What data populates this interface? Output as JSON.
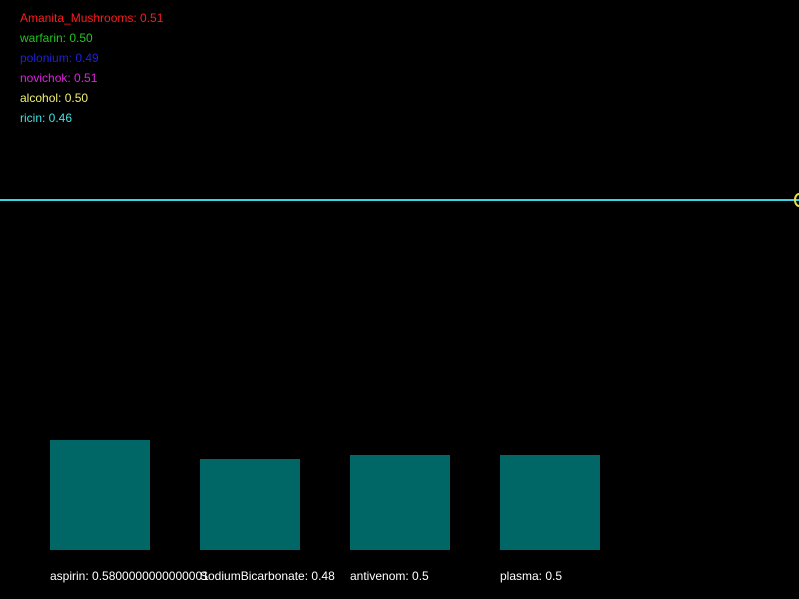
{
  "legend": {
    "items": [
      {
        "label": "Amanita_Mushrooms: 0.51",
        "color": "#ff1a1a"
      },
      {
        "label": "warfarin: 0.50",
        "color": "#22c322"
      },
      {
        "label": "polonium: 0.49",
        "color": "#2020d8"
      },
      {
        "label": "novichok: 0.51",
        "color": "#e020e0"
      },
      {
        "label": "alcohol: 0.50",
        "color": "#f0f070"
      },
      {
        "label": "ricin: 0.46",
        "color": "#40e0e0"
      }
    ]
  },
  "trace": {
    "line_color": "#3ad6e0",
    "marker_color": "#e8e04a"
  },
  "bars": {
    "color": "#006666",
    "items": [
      {
        "label": "aspirin: 0.5800000000000001",
        "value": 0.58
      },
      {
        "label": "SodiumBicarbonate: 0.48",
        "value": 0.48
      },
      {
        "label": "antivenom: 0.5",
        "value": 0.5
      },
      {
        "label": "plasma: 0.5",
        "value": 0.5
      }
    ]
  }
}
